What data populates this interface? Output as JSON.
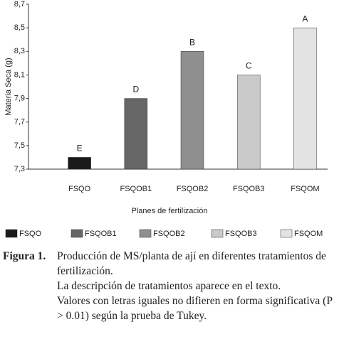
{
  "chart_data": {
    "type": "bar",
    "ylabel": "Materia Seca (g)",
    "xlabel": "Planes de fertilización",
    "categories": [
      "FSQO",
      "FSQOB1",
      "FSQOB2",
      "FSQOB3",
      "FSQOM"
    ],
    "values": [
      7.4,
      7.9,
      8.3,
      8.1,
      8.5
    ],
    "colors": [
      "#1a1a1a",
      "#666666",
      "#8f8f8f",
      "#c9c9c9",
      "#e3e3e3"
    ],
    "letters": [
      "E",
      "D",
      "B",
      "C",
      "A"
    ],
    "ylim": [
      7.3,
      8.7
    ],
    "yticks": [
      {
        "value": 7.3,
        "label": "7,3"
      },
      {
        "value": 7.5,
        "label": "7,5"
      },
      {
        "value": 7.7,
        "label": "7,7"
      },
      {
        "value": 7.9,
        "label": "7,9"
      },
      {
        "value": 8.1,
        "label": "8,1"
      },
      {
        "value": 8.3,
        "label": "8,3"
      },
      {
        "value": 8.5,
        "label": "8,5"
      },
      {
        "value": 8.7,
        "label": "8,7"
      }
    ],
    "grid": false
  },
  "caption": {
    "label": "Figura 1.",
    "lines": [
      "Producción de MS/planta de ají en diferentes tratamientos de fertilización.",
      "La descripción de tratamientos aparece en el texto.",
      "Valores con letras iguales no difieren en forma significativa (P > 0.01) según la prueba de Tukey."
    ]
  }
}
